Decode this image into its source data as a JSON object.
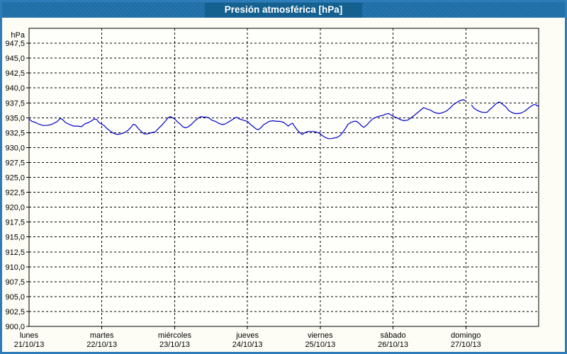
{
  "window": {
    "title": "Presión atmosférica [hPa]"
  },
  "colors": {
    "window_border": "#2E7CB9",
    "titlebar_bg": "#1E6FA9",
    "title_badge_bg": "#14608F",
    "title_text": "#FFFFFF",
    "plot_bg": "#FEFEFB",
    "grid_color": "#000000",
    "line_color": "#0000C8"
  },
  "chart_data": {
    "type": "line",
    "title": "Presión atmosférica [hPa]",
    "y_unit": "hPa",
    "y_min": 900,
    "y_max": 950,
    "y_tick_step": 2.5,
    "decimal_separator": ",",
    "y_tick_labels_top_to_bottom": [
      "947,5",
      "945,0",
      "942,5",
      "940,0",
      "937,5",
      "935,0",
      "932,5",
      "930,0",
      "927,5",
      "925,0",
      "922,5",
      "920,0",
      "917,5",
      "915,0",
      "912,5",
      "910,0",
      "907,5",
      "905,0",
      "902,5",
      "900,0"
    ],
    "grid": "dashed",
    "legend": "none",
    "x_range_days": 7,
    "x_days": [
      {
        "name": "lunes",
        "date": "21/10/13"
      },
      {
        "name": "martes",
        "date": "22/10/13"
      },
      {
        "name": "miércoles",
        "date": "23/10/13"
      },
      {
        "name": "jueves",
        "date": "24/10/13"
      },
      {
        "name": "viernes",
        "date": "25/10/13"
      },
      {
        "name": "sábado",
        "date": "26/10/13"
      },
      {
        "name": "domingo",
        "date": "27/10/13"
      }
    ],
    "data_gap": {
      "from_day": 5.99,
      "to_day": 6.08
    },
    "series": [
      {
        "name": "Presión atmosférica",
        "color": "#0000C8",
        "segments": [
          [
            [
              0.0,
              934.8
            ],
            [
              0.04,
              934.4
            ],
            [
              0.09,
              934.2
            ],
            [
              0.14,
              933.9
            ],
            [
              0.19,
              933.7
            ],
            [
              0.24,
              933.7
            ],
            [
              0.29,
              933.8
            ],
            [
              0.33,
              934.0
            ],
            [
              0.38,
              934.3
            ],
            [
              0.43,
              934.9
            ],
            [
              0.46,
              934.7
            ],
            [
              0.5,
              934.2
            ],
            [
              0.55,
              933.9
            ],
            [
              0.61,
              933.6
            ],
            [
              0.67,
              933.6
            ],
            [
              0.72,
              933.5
            ],
            [
              0.77,
              934.0
            ],
            [
              0.82,
              934.2
            ],
            [
              0.86,
              934.5
            ],
            [
              0.9,
              934.8
            ],
            [
              0.93,
              934.7
            ],
            [
              0.96,
              934.2
            ],
            [
              1.0,
              933.9
            ],
            [
              1.03,
              933.7
            ],
            [
              1.06,
              933.3
            ],
            [
              1.11,
              932.8
            ],
            [
              1.16,
              932.4
            ],
            [
              1.21,
              932.2
            ],
            [
              1.26,
              932.3
            ],
            [
              1.31,
              932.5
            ],
            [
              1.36,
              932.9
            ],
            [
              1.4,
              933.4
            ],
            [
              1.43,
              933.9
            ],
            [
              1.46,
              933.8
            ],
            [
              1.5,
              933.2
            ],
            [
              1.54,
              932.7
            ],
            [
              1.58,
              932.3
            ],
            [
              1.63,
              932.3
            ],
            [
              1.68,
              932.5
            ],
            [
              1.73,
              932.6
            ],
            [
              1.77,
              933.1
            ],
            [
              1.82,
              933.7
            ],
            [
              1.87,
              934.4
            ],
            [
              1.91,
              935.0
            ],
            [
              1.94,
              935.2
            ],
            [
              1.97,
              935.0
            ],
            [
              2.0,
              934.8
            ],
            [
              2.04,
              934.3
            ],
            [
              2.08,
              933.9
            ],
            [
              2.11,
              933.5
            ],
            [
              2.15,
              933.3
            ],
            [
              2.19,
              933.5
            ],
            [
              2.23,
              933.9
            ],
            [
              2.28,
              934.5
            ],
            [
              2.32,
              934.9
            ],
            [
              2.36,
              935.2
            ],
            [
              2.4,
              935.1
            ],
            [
              2.44,
              935.1
            ],
            [
              2.47,
              935.0
            ],
            [
              2.51,
              934.6
            ],
            [
              2.56,
              934.4
            ],
            [
              2.6,
              934.1
            ],
            [
              2.64,
              933.9
            ],
            [
              2.68,
              933.9
            ],
            [
              2.73,
              934.2
            ],
            [
              2.78,
              934.6
            ],
            [
              2.82,
              934.9
            ],
            [
              2.85,
              935.1
            ],
            [
              2.89,
              934.8
            ],
            [
              2.94,
              934.6
            ],
            [
              3.0,
              934.4
            ],
            [
              3.04,
              933.9
            ],
            [
              3.08,
              933.5
            ],
            [
              3.12,
              933.1
            ],
            [
              3.15,
              933.0
            ],
            [
              3.19,
              933.4
            ],
            [
              3.22,
              933.8
            ],
            [
              3.26,
              934.1
            ],
            [
              3.3,
              934.4
            ],
            [
              3.35,
              934.5
            ],
            [
              3.4,
              934.4
            ],
            [
              3.45,
              934.4
            ],
            [
              3.5,
              934.2
            ],
            [
              3.54,
              933.8
            ],
            [
              3.56,
              933.6
            ],
            [
              3.59,
              933.9
            ],
            [
              3.62,
              934.1
            ],
            [
              3.65,
              933.5
            ],
            [
              3.68,
              933.0
            ],
            [
              3.71,
              932.6
            ],
            [
              3.75,
              932.2
            ],
            [
              3.79,
              932.5
            ],
            [
              3.83,
              932.7
            ],
            [
              3.87,
              932.7
            ],
            [
              3.91,
              932.7
            ],
            [
              3.94,
              932.6
            ],
            [
              3.97,
              932.5
            ],
            [
              4.0,
              932.3
            ],
            [
              4.03,
              932.0
            ],
            [
              4.07,
              931.7
            ],
            [
              4.11,
              931.5
            ],
            [
              4.15,
              931.5
            ],
            [
              4.19,
              931.6
            ],
            [
              4.23,
              931.7
            ],
            [
              4.27,
              932.0
            ],
            [
              4.3,
              932.4
            ],
            [
              4.34,
              933.1
            ],
            [
              4.38,
              933.9
            ],
            [
              4.42,
              934.2
            ],
            [
              4.46,
              934.4
            ],
            [
              4.5,
              934.4
            ],
            [
              4.54,
              934.0
            ],
            [
              4.57,
              933.6
            ],
            [
              4.6,
              933.4
            ],
            [
              4.64,
              933.8
            ],
            [
              4.67,
              934.2
            ],
            [
              4.72,
              934.8
            ],
            [
              4.77,
              935.1
            ],
            [
              4.82,
              935.3
            ],
            [
              4.86,
              935.4
            ],
            [
              4.9,
              935.6
            ],
            [
              4.94,
              935.7
            ],
            [
              4.98,
              935.4
            ],
            [
              5.01,
              935.2
            ],
            [
              5.05,
              935.0
            ],
            [
              5.1,
              934.7
            ],
            [
              5.15,
              934.5
            ],
            [
              5.2,
              934.6
            ],
            [
              5.24,
              934.9
            ],
            [
              5.28,
              935.3
            ],
            [
              5.33,
              935.8
            ],
            [
              5.38,
              936.3
            ],
            [
              5.42,
              936.7
            ],
            [
              5.46,
              936.5
            ],
            [
              5.51,
              936.3
            ],
            [
              5.55,
              936.0
            ],
            [
              5.59,
              935.8
            ],
            [
              5.64,
              935.7
            ],
            [
              5.69,
              935.9
            ],
            [
              5.73,
              936.1
            ],
            [
              5.78,
              936.6
            ],
            [
              5.83,
              937.2
            ],
            [
              5.88,
              937.6
            ],
            [
              5.92,
              937.9
            ],
            [
              5.96,
              938.0
            ],
            [
              5.99,
              937.9
            ]
          ],
          [
            [
              6.08,
              937.1
            ],
            [
              6.11,
              936.6
            ],
            [
              6.15,
              936.3
            ],
            [
              6.2,
              936.0
            ],
            [
              6.24,
              935.9
            ],
            [
              6.29,
              935.9
            ],
            [
              6.33,
              936.4
            ],
            [
              6.37,
              936.8
            ],
            [
              6.41,
              937.3
            ],
            [
              6.45,
              937.6
            ],
            [
              6.47,
              937.6
            ],
            [
              6.51,
              937.2
            ],
            [
              6.55,
              936.8
            ],
            [
              6.59,
              936.2
            ],
            [
              6.63,
              935.9
            ],
            [
              6.67,
              935.7
            ],
            [
              6.72,
              935.7
            ],
            [
              6.76,
              935.8
            ],
            [
              6.81,
              936.1
            ],
            [
              6.84,
              936.4
            ],
            [
              6.88,
              936.8
            ],
            [
              6.93,
              937.2
            ],
            [
              6.96,
              937.2
            ],
            [
              6.98,
              937.0
            ],
            [
              7.0,
              937.0
            ]
          ]
        ]
      }
    ]
  }
}
